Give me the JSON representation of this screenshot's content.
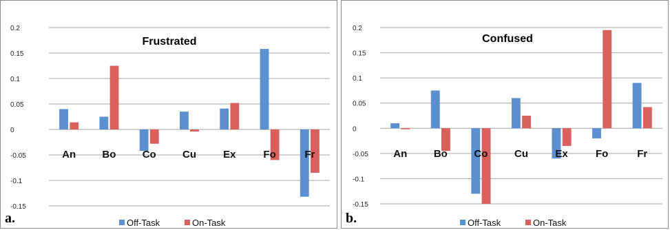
{
  "chart_data": [
    {
      "type": "bar",
      "panel_label": "a.",
      "title": "Frustrated",
      "categories": [
        "An",
        "Bo",
        "Co",
        "Cu",
        "Ex",
        "Fo",
        "Fr"
      ],
      "series": [
        {
          "name": "Off-Task",
          "color": "#5b8fd0",
          "values": [
            0.04,
            0.025,
            -0.042,
            0.035,
            0.041,
            0.158,
            -0.132
          ]
        },
        {
          "name": "On-Task",
          "color": "#d9605c",
          "values": [
            0.014,
            0.125,
            -0.028,
            -0.004,
            0.052,
            -0.06,
            -0.085
          ]
        }
      ],
      "ylim": [
        -0.15,
        0.2
      ],
      "yticks": [
        -0.15,
        -0.1,
        -0.05,
        0,
        0.05,
        0.1,
        0.15,
        0.2
      ],
      "ytick_labels": [
        "-0.15",
        "-0.1",
        "-0.05",
        "0",
        "0.05",
        "0.1",
        "0.15",
        "0.2"
      ],
      "grid": true,
      "legend_position": "bottom"
    },
    {
      "type": "bar",
      "panel_label": "b.",
      "title": "Confused",
      "categories": [
        "An",
        "Bo",
        "Co",
        "Cu",
        "Ex",
        "Fo",
        "Fr"
      ],
      "series": [
        {
          "name": "Off-Task",
          "color": "#5b8fd0",
          "values": [
            0.01,
            0.075,
            -0.13,
            0.06,
            -0.06,
            -0.02,
            0.09
          ]
        },
        {
          "name": "On-Task",
          "color": "#d9605c",
          "values": [
            -0.002,
            -0.045,
            -0.15,
            0.025,
            -0.035,
            0.195,
            0.042
          ]
        }
      ],
      "ylim": [
        -0.15,
        0.2
      ],
      "yticks": [
        -0.15,
        -0.1,
        -0.05,
        0,
        0.05,
        0.1,
        0.15,
        0.2
      ],
      "ytick_labels": [
        "-0.15",
        "-0.1",
        "-0.05",
        "0",
        "0.05",
        "0.1",
        "0.15",
        "0.2"
      ],
      "grid": true,
      "legend_position": "bottom"
    }
  ]
}
